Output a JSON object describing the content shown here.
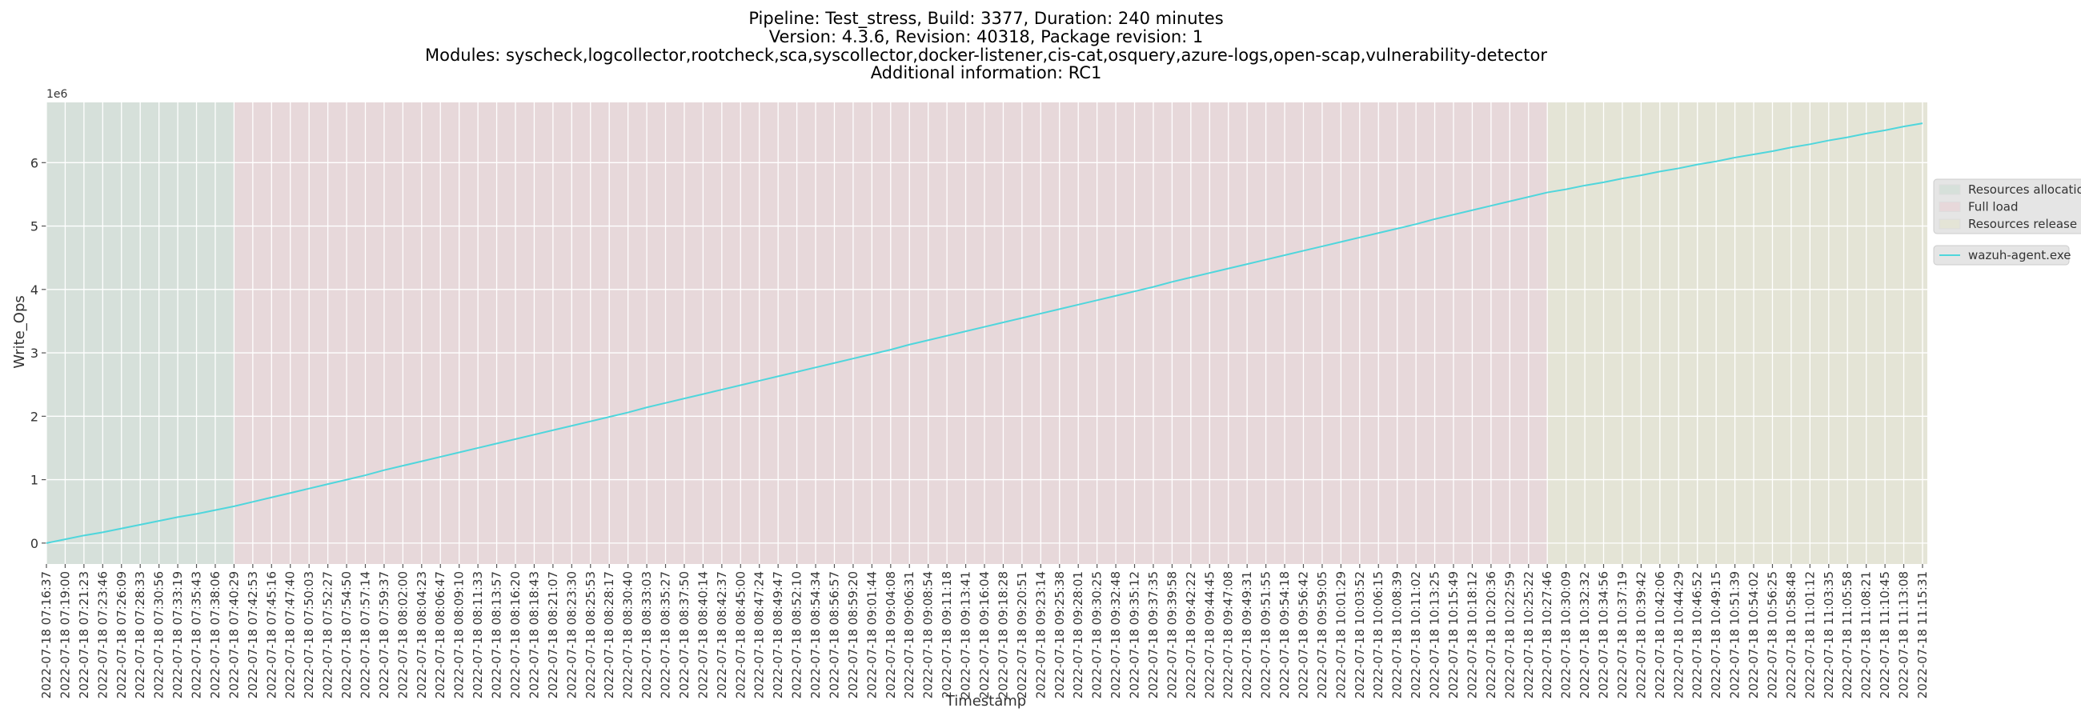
{
  "chart_data": {
    "type": "line",
    "title_lines": [
      "Pipeline: Test_stress, Build: 3377, Duration: 240 minutes",
      "Version: 4.3.6, Revision: 40318, Package revision: 1",
      "Modules: syscheck,logcollector,rootcheck,sca,syscollector,docker-listener,cis-cat,osquery,azure-logs,open-scap,vulnerability-detector",
      "Additional information: RC1"
    ],
    "x_label": "Timestamp",
    "y_label": "Write_Ops",
    "y_offset_label": "1e6",
    "categories": [
      "2022-07-18 07:16:37",
      "2022-07-18 07:19:00",
      "2022-07-18 07:21:23",
      "2022-07-18 07:23:46",
      "2022-07-18 07:26:09",
      "2022-07-18 07:28:33",
      "2022-07-18 07:30:56",
      "2022-07-18 07:33:19",
      "2022-07-18 07:35:43",
      "2022-07-18 07:38:06",
      "2022-07-18 07:40:29",
      "2022-07-18 07:42:53",
      "2022-07-18 07:45:16",
      "2022-07-18 07:47:40",
      "2022-07-18 07:50:03",
      "2022-07-18 07:52:27",
      "2022-07-18 07:54:50",
      "2022-07-18 07:57:14",
      "2022-07-18 07:59:37",
      "2022-07-18 08:02:00",
      "2022-07-18 08:04:23",
      "2022-07-18 08:06:47",
      "2022-07-18 08:09:10",
      "2022-07-18 08:11:33",
      "2022-07-18 08:13:57",
      "2022-07-18 08:16:20",
      "2022-07-18 08:18:43",
      "2022-07-18 08:21:07",
      "2022-07-18 08:23:30",
      "2022-07-18 08:25:53",
      "2022-07-18 08:28:17",
      "2022-07-18 08:30:40",
      "2022-07-18 08:33:03",
      "2022-07-18 08:35:27",
      "2022-07-18 08:37:50",
      "2022-07-18 08:40:14",
      "2022-07-18 08:42:37",
      "2022-07-18 08:45:00",
      "2022-07-18 08:47:24",
      "2022-07-18 08:49:47",
      "2022-07-18 08:52:10",
      "2022-07-18 08:54:34",
      "2022-07-18 08:56:57",
      "2022-07-18 08:59:20",
      "2022-07-18 09:01:44",
      "2022-07-18 09:04:08",
      "2022-07-18 09:06:31",
      "2022-07-18 09:08:54",
      "2022-07-18 09:11:18",
      "2022-07-18 09:13:41",
      "2022-07-18 09:16:04",
      "2022-07-18 09:18:28",
      "2022-07-18 09:20:51",
      "2022-07-18 09:23:14",
      "2022-07-18 09:25:38",
      "2022-07-18 09:28:01",
      "2022-07-18 09:30:25",
      "2022-07-18 09:32:48",
      "2022-07-18 09:35:12",
      "2022-07-18 09:37:35",
      "2022-07-18 09:39:58",
      "2022-07-18 09:42:22",
      "2022-07-18 09:44:45",
      "2022-07-18 09:47:08",
      "2022-07-18 09:49:31",
      "2022-07-18 09:51:55",
      "2022-07-18 09:54:18",
      "2022-07-18 09:56:42",
      "2022-07-18 09:59:05",
      "2022-07-18 10:01:29",
      "2022-07-18 10:03:52",
      "2022-07-18 10:06:15",
      "2022-07-18 10:08:39",
      "2022-07-18 10:11:02",
      "2022-07-18 10:13:25",
      "2022-07-18 10:15:49",
      "2022-07-18 10:18:12",
      "2022-07-18 10:20:36",
      "2022-07-18 10:22:59",
      "2022-07-18 10:25:22",
      "2022-07-18 10:27:46",
      "2022-07-18 10:30:09",
      "2022-07-18 10:32:32",
      "2022-07-18 10:34:56",
      "2022-07-18 10:37:19",
      "2022-07-18 10:39:42",
      "2022-07-18 10:42:06",
      "2022-07-18 10:44:29",
      "2022-07-18 10:46:52",
      "2022-07-18 10:49:15",
      "2022-07-18 10:51:39",
      "2022-07-18 10:54:02",
      "2022-07-18 10:56:25",
      "2022-07-18 10:58:48",
      "2022-07-18 11:01:12",
      "2022-07-18 11:03:35",
      "2022-07-18 11:05:58",
      "2022-07-18 11:08:21",
      "2022-07-18 11:10:45",
      "2022-07-18 11:13:08",
      "2022-07-18 11:15:31"
    ],
    "series": [
      {
        "name": "wazuh-agent.exe",
        "color": "#4fd6dc",
        "values": [
          0,
          0.06,
          0.12,
          0.17,
          0.23,
          0.29,
          0.35,
          0.41,
          0.46,
          0.52,
          0.58,
          0.65,
          0.72,
          0.79,
          0.86,
          0.93,
          1.0,
          1.07,
          1.15,
          1.22,
          1.29,
          1.36,
          1.43,
          1.5,
          1.57,
          1.64,
          1.71,
          1.78,
          1.85,
          1.92,
          1.99,
          2.06,
          2.14,
          2.21,
          2.28,
          2.35,
          2.42,
          2.49,
          2.56,
          2.63,
          2.7,
          2.77,
          2.84,
          2.91,
          2.98,
          3.05,
          3.13,
          3.2,
          3.27,
          3.34,
          3.41,
          3.48,
          3.55,
          3.62,
          3.69,
          3.76,
          3.83,
          3.9,
          3.97,
          4.04,
          4.12,
          4.19,
          4.26,
          4.33,
          4.4,
          4.47,
          4.54,
          4.61,
          4.68,
          4.75,
          4.82,
          4.89,
          4.96,
          5.03,
          5.11,
          5.18,
          5.25,
          5.32,
          5.39,
          5.46,
          5.53,
          5.58,
          5.64,
          5.69,
          5.75,
          5.8,
          5.86,
          5.91,
          5.97,
          6.02,
          6.08,
          6.13,
          6.18,
          6.24,
          6.29,
          6.35,
          6.4,
          6.46,
          6.51,
          6.57,
          6.62
        ]
      }
    ],
    "phases": [
      {
        "name": "Resources allocation",
        "color": "#d6e0da",
        "start": "2022-07-18 07:16:37",
        "end": "2022-07-18 07:40:29"
      },
      {
        "name": "Full load",
        "color": "#e7d8da",
        "start": "2022-07-18 07:40:29",
        "end": "2022-07-18 10:27:46"
      },
      {
        "name": "Resources release",
        "color": "#e4e4d6",
        "start": "2022-07-18 10:27:46",
        "end": "2022-07-18 11:15:31"
      }
    ],
    "ylim": [
      -0.33,
      6.95
    ],
    "yticks": [
      0,
      1,
      2,
      3,
      4,
      5,
      6
    ],
    "grid": true,
    "legend": "right"
  }
}
